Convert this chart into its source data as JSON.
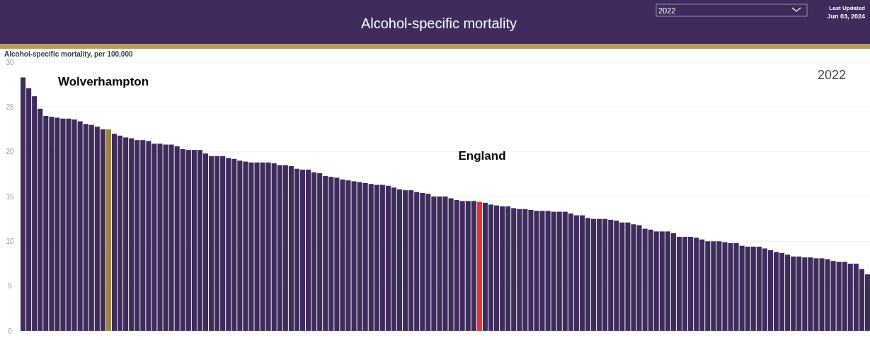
{
  "chart_data": {
    "type": "bar",
    "title": "Alcohol-specific mortality",
    "ylabel": "Alcohol-specific mortality, per 100,000",
    "annotations": [
      "Wolverhampton",
      "England",
      "2022",
      "2022",
      "Last Updated",
      "Jun 03, 2024"
    ],
    "categories": [
      null,
      null,
      null,
      null,
      null,
      null,
      null,
      null,
      null,
      null,
      null,
      null,
      null,
      null,
      null,
      null,
      null,
      null,
      null,
      null,
      null,
      null,
      null,
      null,
      null,
      null,
      null,
      null,
      null,
      null,
      null,
      null,
      null,
      null,
      null,
      null,
      null,
      null,
      null,
      null,
      null,
      null,
      null,
      null,
      null,
      null,
      null,
      null,
      null,
      null,
      null,
      null,
      null,
      null,
      null,
      null,
      null,
      null,
      null,
      null,
      null,
      null,
      null,
      null,
      null,
      null,
      null,
      null,
      null,
      null,
      null,
      null,
      null,
      null,
      null,
      null,
      null,
      null,
      null,
      null,
      null,
      null,
      null,
      null,
      null,
      null,
      null,
      null,
      null,
      null,
      null,
      null,
      null,
      null,
      null,
      null,
      null,
      null,
      null,
      null,
      null,
      null,
      null,
      null,
      null,
      null,
      null,
      null,
      null,
      null,
      null,
      null,
      null,
      null,
      null,
      null,
      null,
      null,
      null,
      null,
      null,
      null,
      null,
      null,
      null,
      null,
      null,
      null,
      null,
      null,
      null,
      null,
      null,
      null,
      null,
      null,
      null,
      null,
      null,
      null,
      null,
      null,
      null,
      null,
      null,
      null,
      null,
      null,
      null
    ],
    "values": [
      28.3,
      27.1,
      26.2,
      24.8,
      24.0,
      23.9,
      23.8,
      23.7,
      23.7,
      23.6,
      23.4,
      23.1,
      23.0,
      22.8,
      22.5,
      22.5,
      22.0,
      21.8,
      21.6,
      21.5,
      21.3,
      21.3,
      21.2,
      20.9,
      20.9,
      20.8,
      20.8,
      20.6,
      20.3,
      20.2,
      20.2,
      20.2,
      19.8,
      19.5,
      19.5,
      19.5,
      19.3,
      19.2,
      19.0,
      18.9,
      18.8,
      18.8,
      18.8,
      18.8,
      18.7,
      18.5,
      18.5,
      18.4,
      18.1,
      18.0,
      18.0,
      17.7,
      17.6,
      17.3,
      17.2,
      17.1,
      16.9,
      16.8,
      16.7,
      16.6,
      16.5,
      16.4,
      16.3,
      16.3,
      16.2,
      16.0,
      15.8,
      15.7,
      15.7,
      15.5,
      15.4,
      15.3,
      15.0,
      15.0,
      15.0,
      14.8,
      14.6,
      14.5,
      14.5,
      14.5,
      14.4,
      14.3,
      14.1,
      14.0,
      13.9,
      13.9,
      13.7,
      13.6,
      13.6,
      13.5,
      13.4,
      13.4,
      13.4,
      13.3,
      13.3,
      13.3,
      13.1,
      12.9,
      12.9,
      12.6,
      12.5,
      12.5,
      12.5,
      12.4,
      12.3,
      12.1,
      12.1,
      11.9,
      11.8,
      11.4,
      11.3,
      11.1,
      11.1,
      11.1,
      10.9,
      10.5,
      10.5,
      10.5,
      10.4,
      10.2,
      10.0,
      10.0,
      10.0,
      9.9,
      9.8,
      9.8,
      9.5,
      9.4,
      9.4,
      9.4,
      9.2,
      9.0,
      8.8,
      8.7,
      8.5,
      8.3,
      8.3,
      8.2,
      8.2,
      8.1,
      8.1,
      8.0,
      7.8,
      7.7,
      7.7,
      7.5,
      7.5,
      6.9,
      6.3
    ],
    "colors": [
      "#3f2b5c",
      "#3f2b5c",
      "#3f2b5c",
      "#3f2b5c",
      "#3f2b5c",
      "#3f2b5c",
      "#3f2b5c",
      "#3f2b5c",
      "#3f2b5c",
      "#3f2b5c",
      "#3f2b5c",
      "#3f2b5c",
      "#3f2b5c",
      "#3f2b5c",
      "#3f2b5c",
      "#9a8440",
      "#3f2b5c",
      "#3f2b5c",
      "#3f2b5c",
      "#3f2b5c",
      "#3f2b5c",
      "#3f2b5c",
      "#3f2b5c",
      "#3f2b5c",
      "#3f2b5c",
      "#3f2b5c",
      "#3f2b5c",
      "#3f2b5c",
      "#3f2b5c",
      "#3f2b5c",
      "#3f2b5c",
      "#3f2b5c",
      "#3f2b5c",
      "#3f2b5c",
      "#3f2b5c",
      "#3f2b5c",
      "#3f2b5c",
      "#3f2b5c",
      "#3f2b5c",
      "#3f2b5c",
      "#3f2b5c",
      "#3f2b5c",
      "#3f2b5c",
      "#3f2b5c",
      "#3f2b5c",
      "#3f2b5c",
      "#3f2b5c",
      "#3f2b5c",
      "#3f2b5c",
      "#3f2b5c",
      "#3f2b5c",
      "#3f2b5c",
      "#3f2b5c",
      "#3f2b5c",
      "#3f2b5c",
      "#3f2b5c",
      "#3f2b5c",
      "#3f2b5c",
      "#3f2b5c",
      "#3f2b5c",
      "#3f2b5c",
      "#3f2b5c",
      "#3f2b5c",
      "#3f2b5c",
      "#3f2b5c",
      "#3f2b5c",
      "#3f2b5c",
      "#3f2b5c",
      "#3f2b5c",
      "#3f2b5c",
      "#3f2b5c",
      "#3f2b5c",
      "#3f2b5c",
      "#3f2b5c",
      "#3f2b5c",
      "#3f2b5c",
      "#3f2b5c",
      "#3f2b5c",
      "#3f2b5c",
      "#3f2b5c",
      "#e8303b",
      "#3f2b5c",
      "#3f2b5c",
      "#3f2b5c",
      "#3f2b5c",
      "#3f2b5c",
      "#3f2b5c",
      "#3f2b5c",
      "#3f2b5c",
      "#3f2b5c",
      "#3f2b5c",
      "#3f2b5c",
      "#3f2b5c",
      "#3f2b5c",
      "#3f2b5c",
      "#3f2b5c",
      "#3f2b5c",
      "#3f2b5c",
      "#3f2b5c",
      "#3f2b5c",
      "#3f2b5c",
      "#3f2b5c",
      "#3f2b5c",
      "#3f2b5c",
      "#3f2b5c",
      "#3f2b5c",
      "#3f2b5c",
      "#3f2b5c",
      "#3f2b5c",
      "#3f2b5c",
      "#3f2b5c",
      "#3f2b5c",
      "#3f2b5c",
      "#3f2b5c",
      "#3f2b5c",
      "#3f2b5c",
      "#3f2b5c",
      "#3f2b5c",
      "#3f2b5c",
      "#3f2b5c",
      "#3f2b5c",
      "#3f2b5c",
      "#3f2b5c",
      "#3f2b5c",
      "#3f2b5c",
      "#3f2b5c",
      "#3f2b5c",
      "#3f2b5c",
      "#3f2b5c",
      "#3f2b5c",
      "#3f2b5c",
      "#3f2b5c",
      "#3f2b5c",
      "#3f2b5c",
      "#3f2b5c",
      "#3f2b5c",
      "#3f2b5c",
      "#3f2b5c",
      "#3f2b5c",
      "#3f2b5c",
      "#3f2b5c",
      "#3f2b5c",
      "#3f2b5c",
      "#3f2b5c",
      "#3f2b5c",
      "#3f2b5c",
      "#3f2b5c",
      "#3f2b5c",
      "#3f2b5c"
    ],
    "ylim": [
      0,
      30
    ],
    "yticks": [
      0,
      5,
      10,
      15,
      20,
      25,
      30
    ],
    "grid": "y"
  }
}
